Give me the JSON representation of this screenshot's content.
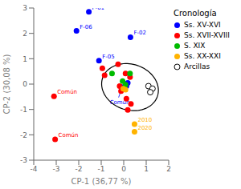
{
  "chart_data": {
    "type": "scatter",
    "legend_title": "Cronología",
    "xlabel": "CP-1 (36,77 %)",
    "ylabel": "CP-2 (30,08 %)",
    "xlim": [
      -4,
      2
    ],
    "ylim": [
      -3,
      3
    ],
    "xticks": [
      -4,
      -3,
      -2,
      -1,
      0,
      1,
      2
    ],
    "yticks": [
      -3,
      -2,
      -1,
      0,
      1,
      2,
      3
    ],
    "grid": false,
    "legend": "right",
    "series": [
      {
        "name": "Ss. XV-XVI",
        "color": "#0000FF",
        "x": [
          -1.55,
          -2.1,
          0.3,
          -1.1,
          -0.08,
          0.12,
          0.18
        ],
        "y": [
          2.85,
          2.1,
          1.85,
          0.92,
          -0.12,
          -0.08,
          0.05
        ],
        "labels": [
          "F-01",
          "F-06",
          "F-02",
          "F-05",
          null,
          null,
          null
        ]
      },
      {
        "name": "Ss. XVII-XVIII",
        "color": "#FF0000",
        "x": [
          -3.1,
          -3.05,
          -0.95,
          -0.85,
          -0.25,
          0.08,
          0.28,
          -0.12,
          0.12,
          0.18,
          0.32,
          -0.18
        ],
        "y": [
          -0.48,
          -2.18,
          0.62,
          0.35,
          0.78,
          0.42,
          0.28,
          -0.28,
          -0.58,
          -1.02,
          -0.78,
          -0.08
        ],
        "labels": [
          "Común",
          "Común",
          null,
          null,
          null,
          null,
          null,
          null,
          null,
          null,
          null,
          null
        ]
      },
      {
        "name": "S. XIX",
        "color": "#00BB00",
        "x": [
          -0.52,
          0.28,
          -0.05,
          0.08
        ],
        "y": [
          0.42,
          0.42,
          0.12,
          -0.02
        ]
      },
      {
        "name": "Ss. XX-XXI",
        "color": "#FFB300",
        "x": [
          -0.02,
          0.08,
          0.48,
          0.48
        ],
        "y": [
          -0.18,
          -0.22,
          -1.58,
          -1.88
        ],
        "labels": [
          null,
          null,
          "2010",
          "2020"
        ]
      },
      {
        "name": "Arcillas",
        "color": "#000000",
        "marker": "open",
        "x": [
          1.1,
          1.28,
          1.18
        ],
        "y": [
          -0.08,
          -0.18,
          -0.32
        ]
      }
    ],
    "annotations": [
      {
        "text": "Común",
        "xy": [
          -0.08,
          -0.15
        ],
        "xytext": [
          -0.62,
          -0.78
        ],
        "color": "#0000FF"
      }
    ],
    "ellipse": {
      "center": [
        0.28,
        -0.12
      ],
      "width": 2.55,
      "height": 1.82,
      "angle": -12
    }
  }
}
